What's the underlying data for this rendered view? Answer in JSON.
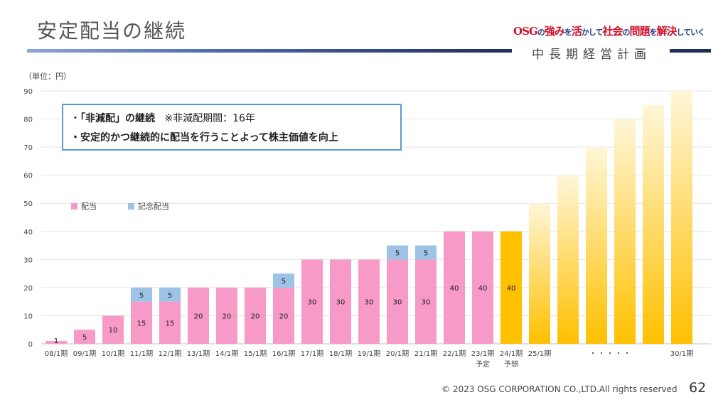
{
  "header": {
    "title": "安定配当の継続",
    "slogan_osg": "OSG",
    "slogan_1": "の",
    "slogan_2": "強み",
    "slogan_3": "を",
    "slogan_4": "活",
    "slogan_5": "かして",
    "slogan_6": "社会",
    "slogan_7": "の",
    "slogan_8": "問題",
    "slogan_9": "を",
    "slogan_10": "解決",
    "slogan_11": "していく",
    "subtitle": "中長期経営計画"
  },
  "callout": {
    "line1_bullet": "・",
    "line1_bold": "「非減配」の継続",
    "line1_note": "※非減配期間：16年",
    "line2": "・安定的かつ継続的に配当を行うことよって株主価値を向上"
  },
  "footer": {
    "copyright": "© 2023 OSG CORPORATION CO.,LTD.All rights reserved",
    "page_number": "62"
  },
  "colors": {
    "dividend": "#f79ac8",
    "commemorative": "#9dc3e6",
    "forecast": "#ffc000",
    "future_top": "#fff6d8",
    "future_bottom": "#ffc000"
  },
  "chart_data": {
    "type": "bar",
    "stacked": true,
    "unit_label": "（単位：円）",
    "ylim": [
      0,
      90
    ],
    "yticks": [
      0,
      10,
      20,
      30,
      40,
      50,
      60,
      70,
      80,
      90
    ],
    "grid": true,
    "legend_position": "left",
    "categories": [
      "08/1期",
      "09/1期",
      "10/1期",
      "11/1期",
      "12/1期",
      "13/1期",
      "14/1期",
      "15/1期",
      "16/1期",
      "17/1期",
      "18/1期",
      "19/1期",
      "20/1期",
      "21/1期",
      "22/1期",
      "23/1期",
      "24/1期",
      "25/1期",
      "",
      "",
      "",
      "",
      "30/1期"
    ],
    "category_sublabels": [
      "",
      "",
      "",
      "",
      "",
      "",
      "",
      "",
      "",
      "",
      "",
      "",
      "",
      "",
      "",
      "予定",
      "予想",
      "",
      "",
      "",
      "",
      "",
      ""
    ],
    "ellipsis_label": "・・・・・",
    "series": [
      {
        "name": "配当",
        "values": [
          1,
          5,
          10,
          15,
          15,
          20,
          20,
          20,
          20,
          30,
          30,
          30,
          30,
          30,
          40,
          40,
          40,
          null,
          null,
          null,
          null,
          null,
          null
        ]
      },
      {
        "name": "記念配当",
        "values": [
          0,
          0,
          0,
          5,
          5,
          0,
          0,
          0,
          5,
          0,
          0,
          0,
          5,
          5,
          0,
          0,
          0,
          null,
          null,
          null,
          null,
          null,
          null
        ]
      }
    ],
    "forecast_index": 16,
    "future_indicative_heights": [
      50,
      60,
      70,
      80,
      85,
      90
    ]
  }
}
